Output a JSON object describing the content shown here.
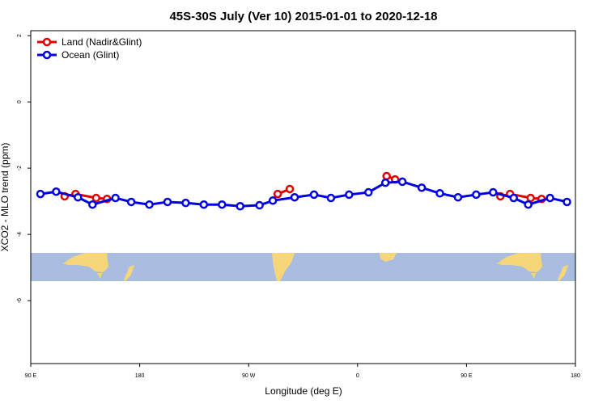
{
  "chart_data": {
    "type": "line",
    "title": "45S-30S July (Ver 10)   2015-01-01 to 2020-12-18",
    "x_label": "Longitude (deg E)",
    "y_label": "XCO2 - MLO trend (ppm)",
    "xlim": [
      90,
      540
    ],
    "ylim": [
      -7.9,
      2.15
    ],
    "xticks": [
      {
        "value": 90,
        "label": "90 E"
      },
      {
        "value": 180,
        "label": "180"
      },
      {
        "value": 270,
        "label": "90 W"
      },
      {
        "value": 360,
        "label": "0"
      },
      {
        "value": 450,
        "label": "90 E"
      },
      {
        "value": 540,
        "label": "180"
      }
    ],
    "yticks": [
      2,
      0,
      -2,
      -4,
      -6
    ],
    "legend": "topleft",
    "series": [
      {
        "name": "Land (Nadir&Glint)",
        "color": "#e00000",
        "x": [
          118,
          127,
          144,
          153,
          null,
          294,
          304,
          null,
          384,
          391,
          null,
          478,
          486,
          503,
          512
        ],
        "values": [
          -2.85,
          -2.78,
          -2.9,
          -2.93,
          null,
          -2.78,
          -2.63,
          null,
          -2.24,
          -2.34,
          null,
          -2.85,
          -2.78,
          -2.9,
          -2.93
        ]
      },
      {
        "name": "Ocean (Glint)",
        "color": "#0000e0",
        "x": [
          98,
          111,
          129,
          141,
          160,
          173,
          188,
          203,
          218,
          233,
          248,
          263,
          279,
          290,
          308,
          324,
          338,
          353,
          369,
          383,
          397,
          413,
          428,
          443,
          458,
          472,
          489,
          501,
          519,
          533
        ],
        "values": [
          -2.78,
          -2.71,
          -2.88,
          -3.1,
          -2.9,
          -3.02,
          -3.1,
          -3.02,
          -3.05,
          -3.1,
          -3.1,
          -3.15,
          -3.12,
          -2.98,
          -2.88,
          -2.8,
          -2.9,
          -2.8,
          -2.73,
          -2.44,
          -2.41,
          -2.59,
          -2.76,
          -2.88,
          -2.8,
          -2.73,
          -2.9,
          -3.1,
          -2.9,
          -3.02
        ]
      }
    ]
  }
}
